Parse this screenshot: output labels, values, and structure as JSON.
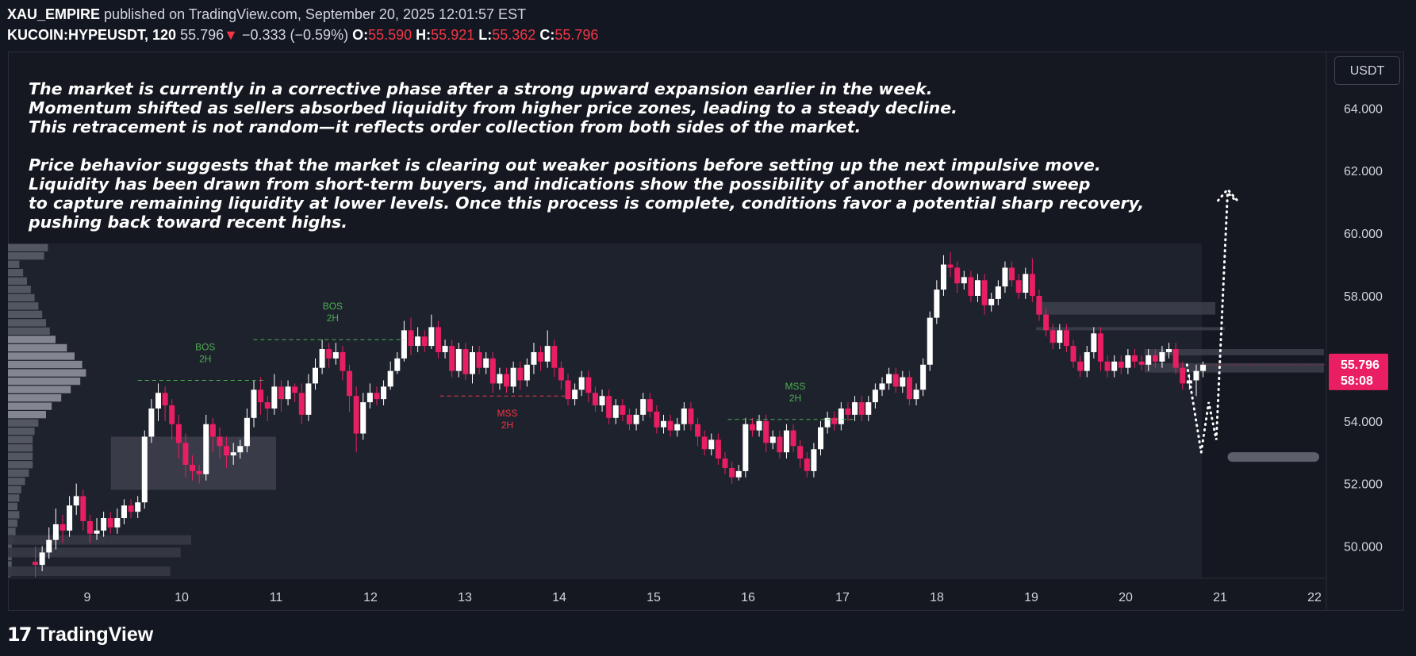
{
  "header": {
    "author": "XAU_EMPIRE",
    "published": "published on TradingView.com, September 20, 2025 12:01:57 EST",
    "symbol": "KUCOIN:HYPEUSDT, 120",
    "last": "55.796",
    "change": "−0.333 (−0.59%)",
    "o_label": "O:",
    "o": "55.590",
    "h_label": "H:",
    "h": "55.921",
    "l_label": "L:",
    "l": "55.362",
    "c_label": "C:",
    "c": "55.796"
  },
  "toolbar": {
    "currency": "USDT"
  },
  "note": {
    "p1": [
      "The market is currently in a corrective phase after a strong upward expansion earlier in the week.",
      "Momentum shifted as sellers absorbed liquidity from higher price zones, leading to a steady decline.",
      "This retracement is not random—it reflects order collection from both sides of the market."
    ],
    "p2": [
      "Price behavior suggests that the market is clearing out weaker positions before setting up the next impulsive move.",
      "Liquidity has been drawn from short-term buyers, and indications show the possibility of another downward sweep",
      "to capture remaining liquidity at lower levels. Once this process is complete, conditions favor a potential sharp recovery,",
      "pushing back toward recent highs."
    ]
  },
  "footer": {
    "brand": "TradingView"
  },
  "colors": {
    "up": "#ffffff",
    "down": "#e91e63",
    "bg": "#131722",
    "bos": "#4caf50",
    "mss_down": "#f23645",
    "price_tag": "#e91e63"
  },
  "chart_data": {
    "type": "candlestick",
    "timeframe": "120",
    "ylim": [
      49.0,
      65.3
    ],
    "yticks": [
      "64.000",
      "62.000",
      "60.000",
      "58.000",
      "56.000",
      "54.000",
      "52.000",
      "50.000"
    ],
    "yticks_values": [
      64,
      62,
      60,
      58,
      56,
      54,
      52,
      50
    ],
    "xticks": [
      "9",
      "10",
      "11",
      "12",
      "13",
      "14",
      "15",
      "16",
      "17",
      "18",
      "19",
      "20",
      "21",
      "22"
    ],
    "last_price_label": "55.796",
    "countdown_label": "58:08",
    "annotations": [
      {
        "text1": "BOS",
        "text2": "2H",
        "color": "#4caf50",
        "x_day": 10.25,
        "level": 55.3
      },
      {
        "text1": "BOS",
        "text2": "2H",
        "color": "#4caf50",
        "x_day": 11.6,
        "level": 56.6
      },
      {
        "text1": "MSS",
        "text2": "2H",
        "color": "#f23645",
        "x_day": 13.45,
        "level": 54.8
      },
      {
        "text1": "MSS",
        "text2": "2H",
        "color": "#4caf50",
        "x_day": 16.5,
        "level": 54.05
      }
    ],
    "candles": [
      [
        49.5,
        49.4,
        50.0,
        49.0
      ],
      [
        49.4,
        49.8,
        50.0,
        49.2
      ],
      [
        49.8,
        50.2,
        50.6,
        49.6
      ],
      [
        50.2,
        50.7,
        51.2,
        49.9
      ],
      [
        50.7,
        50.5,
        51.0,
        50.1
      ],
      [
        50.5,
        51.3,
        51.6,
        50.3
      ],
      [
        51.3,
        51.6,
        52.0,
        51.0
      ],
      [
        51.6,
        50.8,
        51.8,
        50.5
      ],
      [
        50.8,
        50.4,
        51.0,
        50.1
      ],
      [
        50.4,
        50.5,
        50.9,
        50.2
      ],
      [
        50.5,
        50.9,
        51.1,
        50.3
      ],
      [
        50.9,
        50.6,
        51.1,
        50.4
      ],
      [
        50.6,
        50.9,
        51.2,
        50.4
      ],
      [
        50.9,
        51.3,
        51.5,
        50.7
      ],
      [
        51.3,
        51.1,
        51.5,
        50.9
      ],
      [
        51.1,
        51.4,
        51.6,
        50.9
      ],
      [
        51.4,
        53.5,
        53.7,
        51.2
      ],
      [
        53.5,
        54.4,
        54.7,
        53.3
      ],
      [
        54.4,
        54.9,
        55.2,
        54.0
      ],
      [
        54.9,
        54.5,
        55.1,
        54.0
      ],
      [
        54.5,
        53.9,
        54.7,
        53.4
      ],
      [
        53.9,
        53.3,
        54.2,
        52.8
      ],
      [
        53.3,
        52.6,
        53.6,
        52.2
      ],
      [
        52.6,
        52.4,
        52.9,
        52.1
      ],
      [
        52.4,
        52.3,
        52.6,
        52.0
      ],
      [
        52.3,
        53.9,
        54.2,
        52.1
      ],
      [
        53.9,
        53.5,
        54.1,
        53.0
      ],
      [
        53.5,
        53.2,
        53.8,
        52.8
      ],
      [
        53.2,
        52.9,
        53.5,
        52.5
      ],
      [
        52.9,
        53.0,
        53.3,
        52.6
      ],
      [
        53.0,
        53.2,
        53.4,
        52.8
      ],
      [
        53.2,
        54.1,
        54.4,
        53.0
      ],
      [
        54.1,
        55.0,
        55.3,
        53.8
      ],
      [
        55.0,
        54.6,
        55.4,
        54.2
      ],
      [
        54.6,
        54.4,
        54.8,
        54.0
      ],
      [
        54.4,
        55.1,
        55.5,
        54.2
      ],
      [
        55.1,
        54.7,
        55.3,
        54.3
      ],
      [
        54.7,
        55.1,
        55.3,
        54.5
      ],
      [
        55.1,
        54.9,
        55.2,
        54.6
      ],
      [
        54.9,
        54.2,
        55.2,
        53.9
      ],
      [
        54.2,
        55.2,
        55.5,
        54.0
      ],
      [
        55.2,
        55.7,
        56.0,
        55.0
      ],
      [
        55.7,
        56.3,
        56.6,
        55.5
      ],
      [
        56.3,
        56.0,
        56.5,
        55.7
      ],
      [
        56.0,
        56.2,
        56.5,
        55.8
      ],
      [
        56.2,
        55.6,
        56.4,
        55.3
      ],
      [
        55.6,
        54.8,
        55.8,
        54.3
      ],
      [
        54.8,
        53.6,
        55.1,
        53.0
      ],
      [
        53.6,
        54.6,
        54.9,
        53.4
      ],
      [
        54.6,
        54.9,
        55.2,
        54.4
      ],
      [
        54.9,
        54.7,
        55.1,
        54.5
      ],
      [
        54.7,
        55.1,
        55.3,
        54.5
      ],
      [
        55.1,
        55.6,
        55.9,
        55.0
      ],
      [
        55.6,
        56.0,
        56.2,
        55.5
      ],
      [
        56.0,
        56.9,
        57.2,
        55.9
      ],
      [
        56.9,
        56.4,
        57.3,
        56.1
      ],
      [
        56.4,
        56.7,
        57.0,
        56.2
      ],
      [
        56.7,
        56.4,
        56.9,
        56.2
      ],
      [
        56.4,
        57.0,
        57.4,
        56.3
      ],
      [
        57.0,
        56.2,
        57.2,
        56.0
      ],
      [
        56.2,
        56.4,
        56.6,
        56.0
      ],
      [
        56.4,
        55.6,
        56.6,
        55.4
      ],
      [
        55.6,
        56.3,
        56.5,
        55.4
      ],
      [
        56.3,
        55.5,
        56.5,
        55.3
      ],
      [
        55.5,
        56.2,
        56.4,
        55.2
      ],
      [
        56.2,
        55.7,
        56.4,
        55.5
      ],
      [
        55.7,
        56.0,
        56.2,
        55.5
      ],
      [
        56.0,
        55.2,
        56.2,
        54.9
      ],
      [
        55.2,
        55.5,
        55.7,
        55.0
      ],
      [
        55.5,
        55.1,
        55.7,
        54.9
      ],
      [
        55.1,
        55.7,
        55.9,
        54.9
      ],
      [
        55.7,
        55.3,
        55.9,
        55.0
      ],
      [
        55.3,
        55.8,
        56.0,
        55.1
      ],
      [
        55.8,
        56.2,
        56.5,
        55.5
      ],
      [
        56.2,
        55.9,
        56.4,
        55.6
      ],
      [
        55.9,
        56.4,
        56.9,
        55.7
      ],
      [
        56.4,
        55.7,
        56.6,
        55.4
      ],
      [
        55.7,
        55.3,
        55.9,
        55.0
      ],
      [
        55.3,
        54.7,
        55.5,
        54.5
      ],
      [
        54.7,
        55.0,
        55.2,
        54.5
      ],
      [
        55.0,
        55.4,
        55.6,
        54.8
      ],
      [
        55.4,
        54.9,
        55.6,
        54.6
      ],
      [
        54.9,
        54.5,
        55.1,
        54.3
      ],
      [
        54.5,
        54.8,
        55.0,
        54.3
      ],
      [
        54.8,
        54.1,
        55.0,
        53.9
      ],
      [
        54.1,
        54.5,
        54.7,
        53.9
      ],
      [
        54.5,
        54.2,
        54.7,
        54.0
      ],
      [
        54.2,
        53.9,
        54.4,
        53.7
      ],
      [
        53.9,
        54.2,
        54.4,
        53.7
      ],
      [
        54.2,
        54.7,
        54.9,
        54.0
      ],
      [
        54.7,
        54.3,
        54.9,
        54.1
      ],
      [
        54.3,
        53.8,
        54.5,
        53.6
      ],
      [
        53.8,
        54.0,
        54.2,
        53.6
      ],
      [
        54.0,
        53.7,
        54.2,
        53.5
      ],
      [
        53.7,
        53.9,
        54.1,
        53.5
      ],
      [
        53.9,
        54.4,
        54.6,
        53.7
      ],
      [
        54.4,
        53.9,
        54.6,
        53.7
      ],
      [
        53.9,
        53.5,
        54.1,
        53.2
      ],
      [
        53.5,
        53.1,
        53.7,
        52.9
      ],
      [
        53.1,
        53.4,
        53.6,
        52.9
      ],
      [
        53.4,
        52.8,
        53.6,
        52.6
      ],
      [
        52.8,
        52.5,
        53.0,
        52.3
      ],
      [
        52.5,
        52.2,
        52.7,
        52.0
      ],
      [
        52.2,
        52.4,
        52.6,
        52.1
      ],
      [
        52.4,
        53.9,
        54.1,
        52.2
      ],
      [
        53.9,
        53.7,
        54.1,
        53.5
      ],
      [
        53.7,
        54.0,
        54.2,
        53.5
      ],
      [
        54.0,
        53.3,
        54.2,
        53.0
      ],
      [
        53.3,
        53.5,
        53.7,
        53.1
      ],
      [
        53.5,
        53.0,
        53.7,
        52.8
      ],
      [
        53.0,
        53.7,
        53.9,
        52.8
      ],
      [
        53.7,
        53.2,
        53.9,
        53.0
      ],
      [
        53.2,
        52.8,
        53.4,
        52.5
      ],
      [
        52.8,
        52.4,
        53.0,
        52.2
      ],
      [
        52.4,
        53.1,
        53.3,
        52.2
      ],
      [
        53.1,
        53.8,
        54.0,
        52.9
      ],
      [
        53.8,
        54.1,
        54.3,
        53.6
      ],
      [
        54.1,
        53.9,
        54.3,
        53.7
      ],
      [
        53.9,
        54.4,
        54.6,
        53.7
      ],
      [
        54.4,
        54.2,
        54.6,
        54.0
      ],
      [
        54.2,
        54.6,
        54.8,
        54.0
      ],
      [
        54.6,
        54.2,
        54.8,
        54.0
      ],
      [
        54.2,
        54.6,
        54.8,
        54.0
      ],
      [
        54.6,
        55.0,
        55.2,
        54.4
      ],
      [
        55.0,
        55.2,
        55.4,
        54.8
      ],
      [
        55.2,
        55.5,
        55.7,
        55.0
      ],
      [
        55.5,
        55.1,
        55.7,
        54.9
      ],
      [
        55.1,
        55.4,
        55.6,
        54.9
      ],
      [
        55.4,
        54.7,
        55.6,
        54.5
      ],
      [
        54.7,
        55.0,
        55.2,
        54.5
      ],
      [
        55.0,
        55.8,
        56.0,
        54.8
      ],
      [
        55.8,
        57.3,
        57.5,
        55.6
      ],
      [
        57.3,
        58.2,
        58.5,
        57.1
      ],
      [
        58.2,
        59.0,
        59.3,
        58.0
      ],
      [
        59.0,
        58.9,
        59.4,
        58.6
      ],
      [
        58.9,
        58.4,
        59.1,
        58.1
      ],
      [
        58.4,
        58.6,
        58.8,
        58.2
      ],
      [
        58.6,
        58.0,
        58.8,
        57.8
      ],
      [
        58.0,
        58.5,
        58.7,
        57.8
      ],
      [
        58.5,
        57.7,
        58.7,
        57.4
      ],
      [
        57.7,
        57.9,
        58.1,
        57.5
      ],
      [
        57.9,
        58.3,
        58.5,
        57.7
      ],
      [
        58.3,
        58.9,
        59.1,
        58.1
      ],
      [
        58.9,
        58.5,
        59.1,
        58.3
      ],
      [
        58.5,
        58.1,
        58.7,
        57.9
      ],
      [
        58.1,
        58.7,
        58.9,
        57.9
      ],
      [
        58.7,
        58.0,
        59.2,
        57.8
      ],
      [
        58.0,
        57.4,
        58.2,
        57.2
      ],
      [
        57.4,
        56.9,
        57.6,
        56.7
      ],
      [
        56.9,
        56.5,
        57.1,
        56.3
      ],
      [
        56.5,
        56.9,
        57.1,
        56.3
      ],
      [
        56.9,
        56.4,
        57.1,
        56.2
      ],
      [
        56.4,
        55.9,
        56.6,
        55.7
      ],
      [
        55.9,
        55.6,
        56.1,
        55.4
      ],
      [
        55.6,
        56.2,
        56.4,
        55.4
      ],
      [
        56.2,
        56.8,
        57.0,
        56.0
      ],
      [
        56.8,
        55.9,
        57.0,
        55.6
      ],
      [
        55.9,
        55.6,
        56.1,
        55.4
      ],
      [
        55.6,
        55.9,
        56.1,
        55.4
      ],
      [
        55.9,
        55.7,
        56.1,
        55.5
      ],
      [
        55.7,
        56.1,
        56.3,
        55.5
      ],
      [
        56.1,
        55.9,
        56.3,
        55.7
      ],
      [
        55.9,
        55.8,
        56.1,
        55.6
      ],
      [
        55.8,
        56.1,
        56.3,
        55.6
      ],
      [
        56.1,
        55.9,
        56.3,
        55.7
      ],
      [
        55.9,
        56.2,
        56.4,
        55.7
      ],
      [
        56.2,
        56.3,
        56.5,
        56.0
      ],
      [
        56.3,
        55.7,
        56.5,
        55.5
      ],
      [
        55.7,
        55.2,
        55.9,
        55.0
      ],
      [
        55.2,
        55.3,
        55.5,
        55.0
      ],
      [
        55.3,
        55.6,
        55.8,
        54.8
      ],
      [
        55.6,
        55.8,
        55.9,
        55.4
      ]
    ],
    "zones": [
      {
        "from_day": 9.25,
        "to_day": 11.0,
        "low": 51.8,
        "high": 53.5
      },
      {
        "from_day": 19.05,
        "to_day": 20.95,
        "low": 57.4,
        "high": 57.8
      },
      {
        "from_day": 19.05,
        "to_day": 21.05,
        "low": 56.9,
        "high": 57.0
      },
      {
        "from_day": 20.2,
        "to_day": 22.1,
        "low": 56.1,
        "high": 56.3
      },
      {
        "from_day": 20.2,
        "to_day": 22.1,
        "low": 55.55,
        "high": 55.85
      }
    ],
    "target_zone": {
      "from_day": 21.08,
      "to_day": 22.05,
      "level": 52.85
    },
    "projection": [
      [
        20.65,
        55.8
      ],
      [
        20.72,
        54.5
      ],
      [
        20.8,
        53.0
      ],
      [
        20.88,
        54.6
      ],
      [
        20.96,
        53.4
      ],
      [
        21.08,
        61.3
      ],
      [
        21.18,
        61.0
      ]
    ],
    "volume_profile": [
      0.42,
      0.38,
      0.12,
      0.16,
      0.2,
      0.24,
      0.28,
      0.32,
      0.36,
      0.4,
      0.44,
      0.5,
      0.62,
      0.7,
      0.78,
      0.82,
      0.76,
      0.66,
      0.56,
      0.46,
      0.4,
      0.32,
      0.28,
      0.26,
      0.26,
      0.26,
      0.26,
      0.22,
      0.18,
      0.14,
      0.12,
      0.1,
      0.12,
      0.1,
      0.08,
      0.06,
      0.04,
      0.04,
      0.04,
      0.03
    ],
    "vp_low_bands": [
      {
        "price": 50.2,
        "width": 0.7
      },
      {
        "price": 49.8,
        "width": 0.66
      },
      {
        "price": 49.2,
        "width": 0.62
      }
    ]
  }
}
